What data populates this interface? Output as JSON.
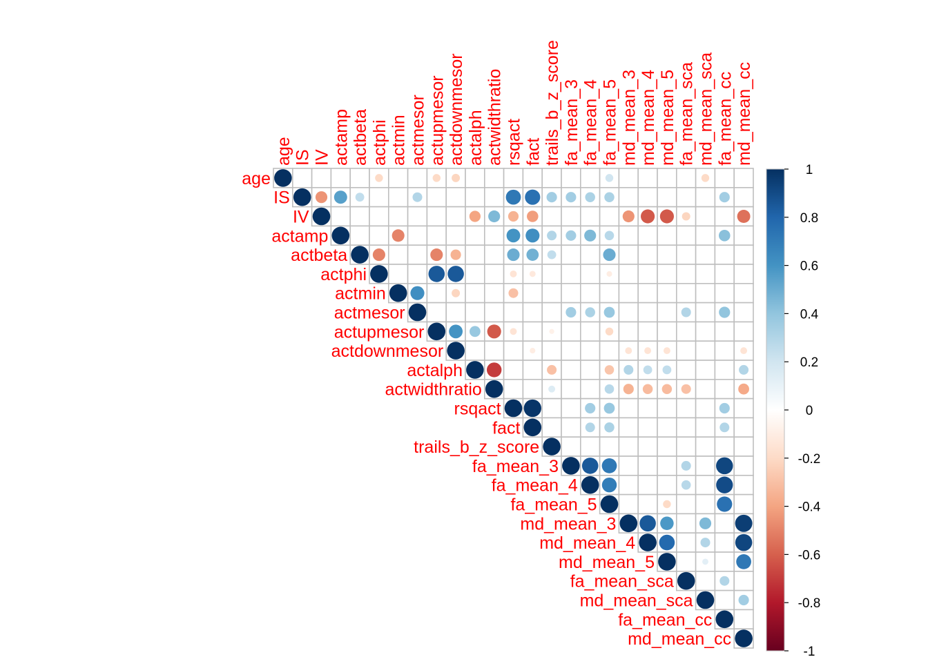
{
  "chart_data": {
    "type": "heatmap",
    "subtype": "correlation-upper-circle",
    "title": "",
    "xlabel": "",
    "ylabel": "",
    "variables": [
      "age",
      "IS",
      "IV",
      "actamp",
      "actbeta",
      "actphi",
      "actmin",
      "actmesor",
      "actupmesor",
      "actdownmesor",
      "actalph",
      "actwidthratio",
      "rsqact",
      "fact",
      "trails_b_z_score",
      "fa_mean_3",
      "fa_mean_4",
      "fa_mean_5",
      "md_mean_3",
      "md_mean_4",
      "md_mean_5",
      "fa_mean_sca",
      "md_mean_sca",
      "fa_mean_cc",
      "md_mean_cc"
    ],
    "label_color": "#FF0000",
    "grid": true,
    "legend": {
      "placement": "right",
      "range": [
        -1,
        1
      ],
      "ticks": [
        "1",
        "0.8",
        "0.6",
        "0.4",
        "0.2",
        "0",
        "-0.2",
        "-0.4",
        "-0.6",
        "-0.8",
        "-1"
      ],
      "colors": [
        "#67001F",
        "#B2182B",
        "#D6604D",
        "#F4A582",
        "#FDDBC7",
        "#FFFFFF",
        "#D1E5F0",
        "#92C5DE",
        "#4393C3",
        "#2166AC",
        "#053061"
      ]
    },
    "cells": [
      {
        "row": "age",
        "col": "age",
        "r": 1
      },
      {
        "row": "age",
        "col": "actphi",
        "r": -0.2
      },
      {
        "row": "age",
        "col": "actupmesor",
        "r": -0.2
      },
      {
        "row": "age",
        "col": "actdownmesor",
        "r": -0.22
      },
      {
        "row": "age",
        "col": "fa_mean_5",
        "r": 0.2
      },
      {
        "row": "age",
        "col": "md_mean_sca",
        "r": -0.2
      },
      {
        "row": "IS",
        "col": "IS",
        "r": 1
      },
      {
        "row": "IS",
        "col": "IV",
        "r": -0.45
      },
      {
        "row": "IS",
        "col": "actamp",
        "r": 0.55
      },
      {
        "row": "IS",
        "col": "actbeta",
        "r": 0.25
      },
      {
        "row": "IS",
        "col": "actmesor",
        "r": 0.3
      },
      {
        "row": "IS",
        "col": "rsqact",
        "r": 0.72
      },
      {
        "row": "IS",
        "col": "fact",
        "r": 0.75
      },
      {
        "row": "IS",
        "col": "trails_b_z_score",
        "r": 0.35
      },
      {
        "row": "IS",
        "col": "fa_mean_3",
        "r": 0.35
      },
      {
        "row": "IS",
        "col": "fa_mean_4",
        "r": 0.32
      },
      {
        "row": "IS",
        "col": "fa_mean_5",
        "r": 0.32
      },
      {
        "row": "IS",
        "col": "fa_mean_cc",
        "r": 0.35
      },
      {
        "row": "IV",
        "col": "IV",
        "r": 1
      },
      {
        "row": "IV",
        "col": "actalph",
        "r": -0.4
      },
      {
        "row": "IV",
        "col": "actwidthratio",
        "r": 0.45
      },
      {
        "row": "IV",
        "col": "rsqact",
        "r": -0.35
      },
      {
        "row": "IV",
        "col": "fact",
        "r": -0.42
      },
      {
        "row": "IV",
        "col": "md_mean_3",
        "r": -0.45
      },
      {
        "row": "IV",
        "col": "md_mean_4",
        "r": -0.62
      },
      {
        "row": "IV",
        "col": "md_mean_5",
        "r": -0.62
      },
      {
        "row": "IV",
        "col": "fa_mean_sca",
        "r": -0.22
      },
      {
        "row": "IV",
        "col": "md_mean_cc",
        "r": -0.55
      },
      {
        "row": "actamp",
        "col": "actamp",
        "r": 1
      },
      {
        "row": "actamp",
        "col": "actmin",
        "r": -0.5
      },
      {
        "row": "actamp",
        "col": "rsqact",
        "r": 0.6
      },
      {
        "row": "actamp",
        "col": "fact",
        "r": 0.62
      },
      {
        "row": "actamp",
        "col": "trails_b_z_score",
        "r": 0.3
      },
      {
        "row": "actamp",
        "col": "fa_mean_3",
        "r": 0.35
      },
      {
        "row": "actamp",
        "col": "fa_mean_4",
        "r": 0.45
      },
      {
        "row": "actamp",
        "col": "fa_mean_5",
        "r": 0.28
      },
      {
        "row": "actamp",
        "col": "fa_mean_cc",
        "r": 0.42
      },
      {
        "row": "actbeta",
        "col": "actbeta",
        "r": 1
      },
      {
        "row": "actbeta",
        "col": "actphi",
        "r": -0.5
      },
      {
        "row": "actbeta",
        "col": "actupmesor",
        "r": -0.5
      },
      {
        "row": "actbeta",
        "col": "actdownmesor",
        "r": -0.35
      },
      {
        "row": "actbeta",
        "col": "rsqact",
        "r": 0.5
      },
      {
        "row": "actbeta",
        "col": "fact",
        "r": 0.48
      },
      {
        "row": "actbeta",
        "col": "trails_b_z_score",
        "r": 0.25
      },
      {
        "row": "actbeta",
        "col": "fa_mean_5",
        "r": 0.5
      },
      {
        "row": "actphi",
        "col": "actphi",
        "r": 1
      },
      {
        "row": "actphi",
        "col": "actupmesor",
        "r": 0.85
      },
      {
        "row": "actphi",
        "col": "actdownmesor",
        "r": 0.85
      },
      {
        "row": "actphi",
        "col": "rsqact",
        "r": -0.15
      },
      {
        "row": "actphi",
        "col": "fact",
        "r": -0.12
      },
      {
        "row": "actphi",
        "col": "fa_mean_5",
        "r": -0.1
      },
      {
        "row": "actmin",
        "col": "actmin",
        "r": 1
      },
      {
        "row": "actmin",
        "col": "actmesor",
        "r": 0.62
      },
      {
        "row": "actmin",
        "col": "actdownmesor",
        "r": -0.22
      },
      {
        "row": "actmin",
        "col": "rsqact",
        "r": -0.3
      },
      {
        "row": "actmesor",
        "col": "actmesor",
        "r": 1
      },
      {
        "row": "actmesor",
        "col": "fa_mean_3",
        "r": 0.35
      },
      {
        "row": "actmesor",
        "col": "fa_mean_4",
        "r": 0.32
      },
      {
        "row": "actmesor",
        "col": "fa_mean_5",
        "r": 0.38
      },
      {
        "row": "actmesor",
        "col": "fa_mean_sca",
        "r": 0.3
      },
      {
        "row": "actmesor",
        "col": "fa_mean_cc",
        "r": 0.4
      },
      {
        "row": "actupmesor",
        "col": "actupmesor",
        "r": 1
      },
      {
        "row": "actupmesor",
        "col": "actdownmesor",
        "r": 0.6
      },
      {
        "row": "actupmesor",
        "col": "actalph",
        "r": 0.38
      },
      {
        "row": "actupmesor",
        "col": "actwidthratio",
        "r": -0.62
      },
      {
        "row": "actupmesor",
        "col": "rsqact",
        "r": -0.15
      },
      {
        "row": "actupmesor",
        "col": "trails_b_z_score",
        "r": -0.08
      },
      {
        "row": "actupmesor",
        "col": "fa_mean_5",
        "r": -0.2
      },
      {
        "row": "actdownmesor",
        "col": "actdownmesor",
        "r": 1
      },
      {
        "row": "actdownmesor",
        "col": "fact",
        "r": -0.1
      },
      {
        "row": "actdownmesor",
        "col": "md_mean_3",
        "r": -0.15
      },
      {
        "row": "actdownmesor",
        "col": "md_mean_4",
        "r": -0.15
      },
      {
        "row": "actdownmesor",
        "col": "md_mean_5",
        "r": -0.15
      },
      {
        "row": "actdownmesor",
        "col": "md_mean_cc",
        "r": -0.15
      },
      {
        "row": "actalph",
        "col": "actalph",
        "r": 1
      },
      {
        "row": "actalph",
        "col": "actwidthratio",
        "r": -0.7
      },
      {
        "row": "actalph",
        "col": "trails_b_z_score",
        "r": -0.3
      },
      {
        "row": "actalph",
        "col": "fa_mean_5",
        "r": -0.28
      },
      {
        "row": "actalph",
        "col": "md_mean_3",
        "r": 0.3
      },
      {
        "row": "actalph",
        "col": "md_mean_4",
        "r": 0.25
      },
      {
        "row": "actalph",
        "col": "md_mean_5",
        "r": 0.25
      },
      {
        "row": "actalph",
        "col": "md_mean_cc",
        "r": 0.3
      },
      {
        "row": "actwidthratio",
        "col": "actwidthratio",
        "r": 1
      },
      {
        "row": "actwidthratio",
        "col": "trails_b_z_score",
        "r": 0.15
      },
      {
        "row": "actwidthratio",
        "col": "fa_mean_5",
        "r": 0.28
      },
      {
        "row": "actwidthratio",
        "col": "md_mean_3",
        "r": -0.35
      },
      {
        "row": "actwidthratio",
        "col": "md_mean_4",
        "r": -0.32
      },
      {
        "row": "actwidthratio",
        "col": "md_mean_5",
        "r": -0.32
      },
      {
        "row": "actwidthratio",
        "col": "fa_mean_sca",
        "r": -0.3
      },
      {
        "row": "actwidthratio",
        "col": "md_mean_cc",
        "r": -0.38
      },
      {
        "row": "rsqact",
        "col": "rsqact",
        "r": 1
      },
      {
        "row": "rsqact",
        "col": "fact",
        "r": 0.98
      },
      {
        "row": "rsqact",
        "col": "fa_mean_4",
        "r": 0.35
      },
      {
        "row": "rsqact",
        "col": "fa_mean_5",
        "r": 0.38
      },
      {
        "row": "rsqact",
        "col": "fa_mean_cc",
        "r": 0.35
      },
      {
        "row": "fact",
        "col": "fact",
        "r": 1
      },
      {
        "row": "fact",
        "col": "fa_mean_4",
        "r": 0.3
      },
      {
        "row": "fact",
        "col": "fa_mean_5",
        "r": 0.32
      },
      {
        "row": "fact",
        "col": "fa_mean_cc",
        "r": 0.3
      },
      {
        "row": "trails_b_z_score",
        "col": "trails_b_z_score",
        "r": 1
      },
      {
        "row": "fa_mean_3",
        "col": "fa_mean_3",
        "r": 1
      },
      {
        "row": "fa_mean_3",
        "col": "fa_mean_4",
        "r": 0.85
      },
      {
        "row": "fa_mean_3",
        "col": "fa_mean_5",
        "r": 0.72
      },
      {
        "row": "fa_mean_3",
        "col": "fa_mean_sca",
        "r": 0.3
      },
      {
        "row": "fa_mean_3",
        "col": "fa_mean_cc",
        "r": 0.92
      },
      {
        "row": "fa_mean_4",
        "col": "fa_mean_4",
        "r": 1
      },
      {
        "row": "fa_mean_4",
        "col": "fa_mean_5",
        "r": 0.7
      },
      {
        "row": "fa_mean_4",
        "col": "fa_mean_sca",
        "r": 0.28
      },
      {
        "row": "fa_mean_4",
        "col": "fa_mean_cc",
        "r": 0.9
      },
      {
        "row": "fa_mean_5",
        "col": "fa_mean_5",
        "r": 1
      },
      {
        "row": "fa_mean_5",
        "col": "md_mean_5",
        "r": -0.2
      },
      {
        "row": "fa_mean_5",
        "col": "fa_mean_cc",
        "r": 0.75
      },
      {
        "row": "md_mean_3",
        "col": "md_mean_3",
        "r": 1
      },
      {
        "row": "md_mean_3",
        "col": "md_mean_4",
        "r": 0.85
      },
      {
        "row": "md_mean_3",
        "col": "md_mean_5",
        "r": 0.58
      },
      {
        "row": "md_mean_3",
        "col": "md_mean_sca",
        "r": 0.45
      },
      {
        "row": "md_mean_3",
        "col": "md_mean_cc",
        "r": 0.95
      },
      {
        "row": "md_mean_4",
        "col": "md_mean_4",
        "r": 1
      },
      {
        "row": "md_mean_4",
        "col": "md_mean_5",
        "r": 0.78
      },
      {
        "row": "md_mean_4",
        "col": "md_mean_sca",
        "r": 0.3
      },
      {
        "row": "md_mean_4",
        "col": "md_mean_cc",
        "r": 0.92
      },
      {
        "row": "md_mean_5",
        "col": "md_mean_5",
        "r": 1
      },
      {
        "row": "md_mean_5",
        "col": "md_mean_sca",
        "r": 0.12
      },
      {
        "row": "md_mean_5",
        "col": "md_mean_cc",
        "r": 0.72
      },
      {
        "row": "fa_mean_sca",
        "col": "fa_mean_sca",
        "r": 1
      },
      {
        "row": "fa_mean_sca",
        "col": "fa_mean_cc",
        "r": 0.3
      },
      {
        "row": "md_mean_sca",
        "col": "md_mean_sca",
        "r": 1
      },
      {
        "row": "md_mean_sca",
        "col": "md_mean_cc",
        "r": 0.35
      },
      {
        "row": "fa_mean_cc",
        "col": "fa_mean_cc",
        "r": 1
      },
      {
        "row": "md_mean_cc",
        "col": "md_mean_cc",
        "r": 1
      }
    ]
  }
}
